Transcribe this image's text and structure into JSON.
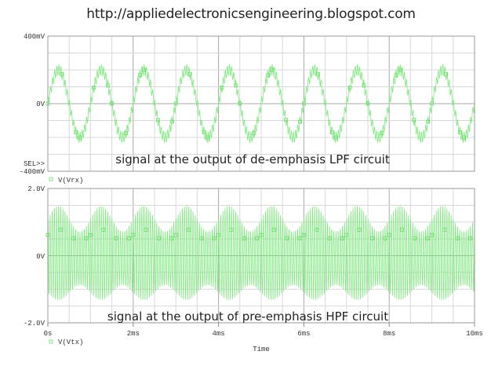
{
  "header": {
    "url": "http://appliedelectronicsengineering.blogspot.com"
  },
  "colors": {
    "trace": "#7ee87e",
    "marker": "#66dd66",
    "grid_minor": "#d8d8d8",
    "grid_major": "#a8a8a8",
    "axis": "#888888",
    "text": "#333333"
  },
  "xaxis": {
    "label": "Time",
    "ticks": [
      "0s",
      "2ms",
      "4ms",
      "6ms",
      "8ms",
      "10ms"
    ],
    "range_ms": [
      0,
      10
    ]
  },
  "top_plot": {
    "y_ticks": {
      "top": "400mV",
      "mid": "0V",
      "bottom": "-400mV"
    },
    "sel_marker": "SEL>>",
    "legend": "V(Vrx)",
    "annotation": "signal at the output of de-emphasis LPF circuit"
  },
  "bottom_plot": {
    "y_ticks": {
      "top": "2.0V",
      "mid": "0V",
      "bottom": "-2.0V"
    },
    "legend": "V(Vtx)",
    "annotation": "signal at the output of pre-emphasis HPF circuit"
  },
  "chart_data": [
    {
      "type": "line",
      "title": "signal at the output of de-emphasis LPF circuit",
      "series": [
        {
          "name": "V(Vrx)",
          "description": "1 kHz sine ~210 mV amplitude with small high-frequency ripple (~40 mV p-p)"
        }
      ],
      "xlabel": "Time",
      "ylabel": "",
      "x_range": [
        0,
        0.01
      ],
      "x_unit": "s",
      "ylim": [
        -0.4,
        0.4
      ],
      "y_unit": "V",
      "y_ticks": [
        "-400mV",
        "0V",
        "400mV"
      ],
      "fundamental_hz": 1000,
      "amplitude_v": 0.2,
      "ripple_hz": 20000,
      "ripple_amp_v": 0.03,
      "grid": true
    },
    {
      "type": "line",
      "title": "signal at the output of pre-emphasis HPF circuit",
      "series": [
        {
          "name": "V(Vtx)",
          "description": "~20 kHz carrier whose envelope varies between ~0.8 V and ~1.4 V at 1 kHz, plus small 1 kHz offset"
        }
      ],
      "xlabel": "Time",
      "ylabel": "",
      "x_range": [
        0,
        0.01
      ],
      "x_unit": "s",
      "ylim": [
        -2.0,
        2.0
      ],
      "y_unit": "V",
      "y_ticks": [
        "-2.0V",
        "0V",
        "2.0V"
      ],
      "carrier_hz": 20000,
      "envelope_min_v": 0.8,
      "envelope_max_v": 1.4,
      "modulation_hz": 1000,
      "grid": true
    }
  ]
}
